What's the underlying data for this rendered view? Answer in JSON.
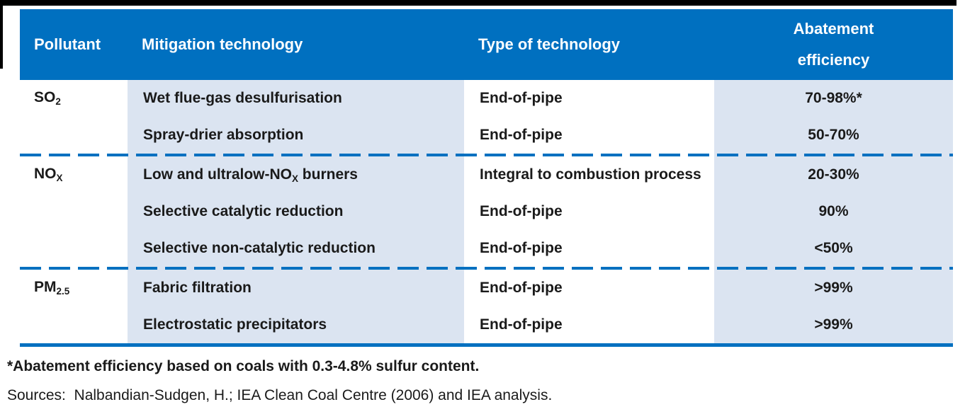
{
  "colors": {
    "header_bg": "#0070C0",
    "header_text": "#ffffff",
    "band_bg": "#dbe4f1",
    "separator_line": "#0070C0",
    "bottom_border": "#0070C0",
    "body_text": "#1a1a1a",
    "top_frame": "#000000"
  },
  "header": {
    "pollutant": "Pollutant",
    "mitigation": "Mitigation technology",
    "type": "Type of technology",
    "abatement": "Abatement efficiency"
  },
  "groups": [
    {
      "pollutant": {
        "base": "SO",
        "sub": "2"
      },
      "rows": [
        {
          "tech_pre": "Wet flue-gas desulfurisation",
          "tech_sub": "",
          "tech_post": "",
          "type": "End-of-pipe",
          "efficiency": "70-98%*"
        },
        {
          "tech_pre": "Spray-drier absorption",
          "tech_sub": "",
          "tech_post": "",
          "type": "End-of-pipe",
          "efficiency": "50-70%"
        }
      ]
    },
    {
      "pollutant": {
        "base": "NO",
        "sub": "X"
      },
      "rows": [
        {
          "tech_pre": "Low and ultralow-NO",
          "tech_sub": "X",
          "tech_post": " burners",
          "type": "Integral to combustion process",
          "efficiency": "20-30%"
        },
        {
          "tech_pre": "Selective catalytic reduction",
          "tech_sub": "",
          "tech_post": "",
          "type": "End-of-pipe",
          "efficiency": "90%"
        },
        {
          "tech_pre": "Selective non-catalytic reduction",
          "tech_sub": "",
          "tech_post": "",
          "type": "End-of-pipe",
          "efficiency": "<50%"
        }
      ]
    },
    {
      "pollutant": {
        "base": "PM",
        "sub": "2.5"
      },
      "rows": [
        {
          "tech_pre": "Fabric filtration",
          "tech_sub": "",
          "tech_post": "",
          "type": "End-of-pipe",
          "efficiency": ">99%"
        },
        {
          "tech_pre": "Electrostatic precipitators",
          "tech_sub": "",
          "tech_post": "",
          "type": "End-of-pipe",
          "efficiency": ">99%"
        }
      ]
    }
  ],
  "notes": {
    "footnote": "*Abatement efficiency based on coals with 0.3-4.8% sulfur content.",
    "sources": "Sources:  Nalbandian-Sudgen, H.; IEA Clean Coal Centre (2006) and IEA analysis."
  }
}
